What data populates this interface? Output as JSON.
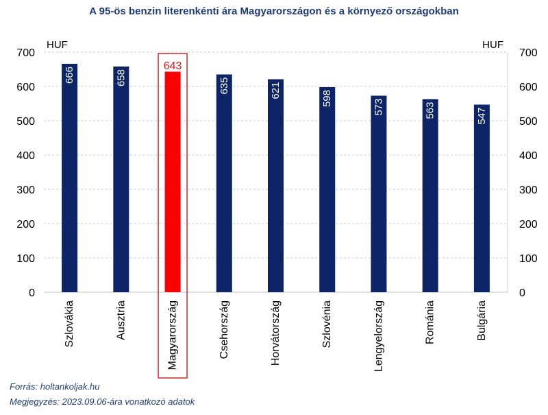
{
  "chart_data": {
    "type": "bar",
    "title": "A 95-ös benzin literenkénti ára Magyarországon és a környező országokban",
    "categories": [
      "Szlovákia",
      "Ausztria",
      "Magyarország",
      "Csehország",
      "Horvátország",
      "Szlovénia",
      "Lengyelország",
      "Románia",
      "Bulgária"
    ],
    "values": [
      666,
      658,
      643,
      635,
      621,
      598,
      573,
      563,
      547
    ],
    "highlight_index": 2,
    "ylabel_left": "HUF",
    "ylabel_right": "HUF",
    "ylim": [
      0,
      700
    ],
    "yticks": [
      0,
      100,
      200,
      300,
      400,
      500,
      600,
      700
    ],
    "grid": true,
    "colors": {
      "bar": "#0d2566",
      "highlight": "#ff0000",
      "highlight_label": "#e8161a",
      "title": "#1f3b7a",
      "grid": "#c8c8c8"
    }
  },
  "footer": {
    "source": "Forrás: holtankoljak.hu",
    "note": "Megjegyzés: 2023.09.06-ára vonatkozó adatok"
  }
}
